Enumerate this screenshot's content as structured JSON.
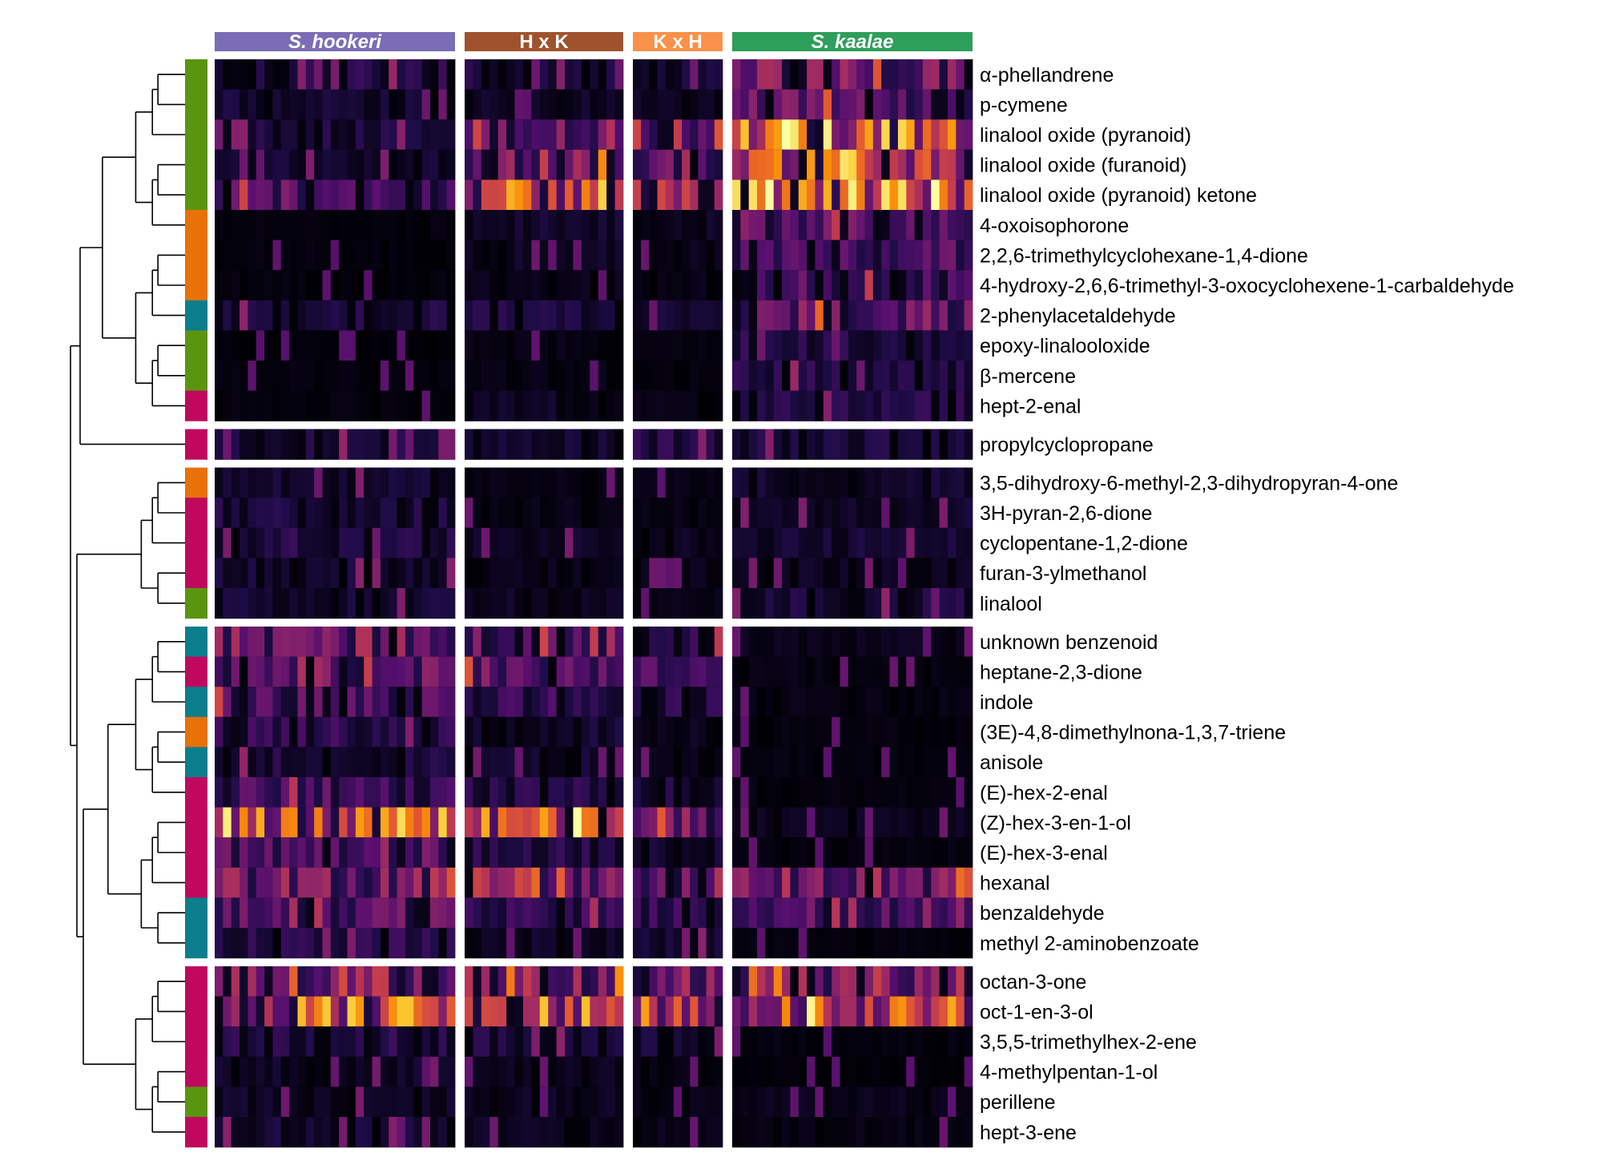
{
  "chart_data": {
    "type": "heatmap",
    "title": "",
    "xlabel": "",
    "ylabel": "",
    "colormap": "inferno",
    "value_range": [
      0,
      1
    ],
    "column_groups": [
      {
        "label": "S. hookeri",
        "italic": true,
        "color": "#7b6db5",
        "n_samples": 29
      },
      {
        "label": "H x K",
        "italic": false,
        "color": "#a0522d",
        "n_samples": 19
      },
      {
        "label": "K x H",
        "italic": false,
        "color": "#f9914a",
        "n_samples": 11
      },
      {
        "label": "S. kaalae",
        "italic": true,
        "color": "#2e9e5b",
        "n_samples": 29
      }
    ],
    "compound_class_colors": {
      "terpenoid": "#5b9510",
      "apocarotenoid": "#e8710a",
      "benzenoid": "#0a7e8c",
      "fatty_acid_derivative": "#c0085f"
    },
    "row_clusters": [
      {
        "rows": [
          {
            "label": "α-phellandrene",
            "class": "terpenoid",
            "means": [
              0.12,
              0.1,
              0.08,
              0.28
            ]
          },
          {
            "label": "p-cymene",
            "class": "terpenoid",
            "means": [
              0.08,
              0.06,
              0.05,
              0.24
            ]
          },
          {
            "label": "linalool oxide (pyranoid)",
            "class": "terpenoid",
            "means": [
              0.1,
              0.38,
              0.33,
              0.62
            ]
          },
          {
            "label": "linalool oxide (furanoid)",
            "class": "terpenoid",
            "means": [
              0.07,
              0.33,
              0.3,
              0.55
            ]
          },
          {
            "label": "linalool oxide (pyranoid) ketone",
            "class": "terpenoid",
            "means": [
              0.2,
              0.55,
              0.48,
              0.68
            ]
          },
          {
            "label": "4-oxoisophorone",
            "class": "apocarotenoid",
            "means": [
              0.02,
              0.08,
              0.05,
              0.22
            ]
          },
          {
            "label": "2,2,6-trimethylcyclohexane-1,4-dione",
            "class": "apocarotenoid",
            "means": [
              0.02,
              0.06,
              0.04,
              0.2
            ]
          },
          {
            "label": "4-hydroxy-2,6,6-trimethyl-3-oxocyclohexene-1-carbaldehyde",
            "class": "apocarotenoid",
            "means": [
              0.02,
              0.04,
              0.03,
              0.17
            ]
          },
          {
            "label": "2-phenylacetaldehyde",
            "class": "benzenoid",
            "means": [
              0.1,
              0.1,
              0.08,
              0.26
            ]
          },
          {
            "label": "epoxy-linalooloxide",
            "class": "terpenoid",
            "means": [
              0.01,
              0.03,
              0.02,
              0.12
            ]
          },
          {
            "label": "β-mercene",
            "class": "terpenoid",
            "means": [
              0.02,
              0.03,
              0.02,
              0.12
            ]
          },
          {
            "label": "hept-2-enal",
            "class": "fatty_acid_derivative",
            "means": [
              0.02,
              0.06,
              0.03,
              0.12
            ]
          }
        ]
      },
      {
        "rows": [
          {
            "label": "propylcyclopropane",
            "class": "fatty_acid_derivative",
            "means": [
              0.1,
              0.08,
              0.12,
              0.1
            ]
          }
        ]
      },
      {
        "rows": [
          {
            "label": "3,5-dihydroxy-6-methyl-2,3-dihydropyran-4-one",
            "class": "apocarotenoid",
            "means": [
              0.07,
              0.03,
              0.03,
              0.08
            ]
          },
          {
            "label": "3H-pyran-2,6-dione",
            "class": "fatty_acid_derivative",
            "means": [
              0.1,
              0.04,
              0.03,
              0.07
            ]
          },
          {
            "label": "cyclopentane-1,2-dione",
            "class": "fatty_acid_derivative",
            "means": [
              0.12,
              0.06,
              0.05,
              0.08
            ]
          },
          {
            "label": "furan-3-ylmethanol",
            "class": "fatty_acid_derivative",
            "means": [
              0.08,
              0.04,
              0.04,
              0.05
            ]
          },
          {
            "label": "linalool",
            "class": "terpenoid",
            "means": [
              0.08,
              0.05,
              0.03,
              0.1
            ]
          }
        ]
      },
      {
        "rows": [
          {
            "label": "unknown benzenoid",
            "class": "benzenoid",
            "means": [
              0.3,
              0.2,
              0.16,
              0.04
            ]
          },
          {
            "label": "heptane-2,3-dione",
            "class": "fatty_acid_derivative",
            "means": [
              0.28,
              0.24,
              0.18,
              0.03
            ]
          },
          {
            "label": "indole",
            "class": "benzenoid",
            "means": [
              0.2,
              0.16,
              0.12,
              0.03
            ]
          },
          {
            "label": "(3E)-4,8-dimethylnona-1,3,7-triene",
            "class": "apocarotenoid",
            "means": [
              0.14,
              0.08,
              0.05,
              0.02
            ]
          },
          {
            "label": "anisole",
            "class": "benzenoid",
            "means": [
              0.1,
              0.07,
              0.05,
              0.02
            ]
          },
          {
            "label": "(E)-hex-2-enal",
            "class": "fatty_acid_derivative",
            "means": [
              0.18,
              0.14,
              0.1,
              0.02
            ]
          },
          {
            "label": "(Z)-hex-3-en-1-ol",
            "class": "fatty_acid_derivative",
            "means": [
              0.6,
              0.52,
              0.42,
              0.05
            ]
          },
          {
            "label": "(E)-hex-3-enal",
            "class": "fatty_acid_derivative",
            "means": [
              0.22,
              0.12,
              0.08,
              0.02
            ]
          },
          {
            "label": "hexanal",
            "class": "fatty_acid_derivative",
            "means": [
              0.32,
              0.28,
              0.24,
              0.3
            ]
          },
          {
            "label": "benzaldehyde",
            "class": "benzenoid",
            "means": [
              0.22,
              0.16,
              0.14,
              0.16
            ]
          },
          {
            "label": "methyl 2-aminobenzoate",
            "class": "benzenoid",
            "means": [
              0.14,
              0.06,
              0.08,
              0.02
            ]
          }
        ]
      },
      {
        "rows": [
          {
            "label": "octan-3-one",
            "class": "fatty_acid_derivative",
            "means": [
              0.36,
              0.32,
              0.3,
              0.3
            ]
          },
          {
            "label": "oct-1-en-3-ol",
            "class": "fatty_acid_derivative",
            "means": [
              0.55,
              0.55,
              0.5,
              0.48
            ]
          },
          {
            "label": "3,5,5-trimethylhex-2-ene",
            "class": "fatty_acid_derivative",
            "means": [
              0.12,
              0.1,
              0.09,
              0.02
            ]
          },
          {
            "label": "4-methylpentan-1-ol",
            "class": "fatty_acid_derivative",
            "means": [
              0.06,
              0.05,
              0.03,
              0.01
            ]
          },
          {
            "label": "perillene",
            "class": "terpenoid",
            "means": [
              0.06,
              0.05,
              0.03,
              0.04
            ]
          },
          {
            "label": "hept-3-ene",
            "class": "fatty_acid_derivative",
            "means": [
              0.08,
              0.05,
              0.04,
              0.03
            ]
          }
        ]
      }
    ]
  }
}
